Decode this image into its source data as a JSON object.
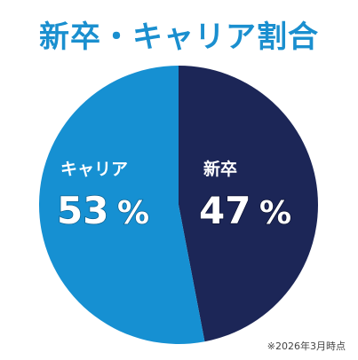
{
  "title": "新卒・キャリア割合",
  "note": "※2026年3月時点",
  "colors": {
    "career": "#1690d2",
    "new_grad": "#1c2657",
    "title": "#1a8fcf",
    "label": "#ffffff"
  },
  "chart_data": {
    "type": "pie",
    "slices": [
      {
        "name": "新卒",
        "value": 47,
        "value_label": "47",
        "unit": "%"
      },
      {
        "name": "キャリア",
        "value": 53,
        "value_label": "53",
        "unit": "%"
      }
    ],
    "start_angle": "12 o'clock",
    "direction": "clockwise",
    "legend": "none (labels inside slices)"
  }
}
